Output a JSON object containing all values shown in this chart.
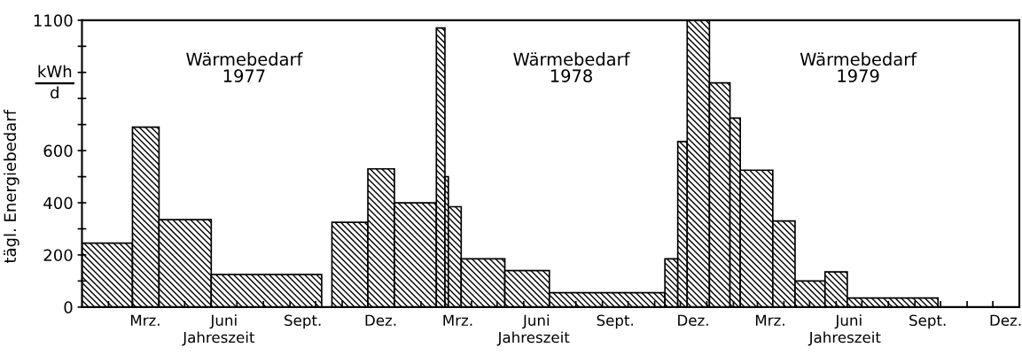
{
  "chart_data": {
    "type": "histogram",
    "ylabel": "tägl. Energiebedarf",
    "xlabel": "Jahreszeit",
    "annotations": [
      "kWh",
      "d",
      "Wärmebedarf\n1977",
      "Wärmebedarf\n1978",
      "Wärmebedarf\n1979",
      "Jahreszeit",
      "Jahreszeit"
    ],
    "color": "#000000",
    "bins": [
      "1977-01-01",
      "1977-03-01",
      "1977-04-01",
      "1977-06-01",
      "1977-10-08",
      "1977-10-20",
      "1977-12-01",
      "1978-01-01",
      "1978-02-19",
      "1978-03-01",
      "1978-03-05",
      "1978-03-20",
      "1978-05-10",
      "1978-07-01",
      "1978-11-13",
      "1978-11-28",
      "1978-12-09",
      "1979-01-04",
      "1979-01-28",
      "1979-02-09",
      "1979-03-19",
      "1979-04-14",
      "1979-05-19",
      "1979-06-14",
      "1979-09-28"
    ],
    "values": [
      245,
      690,
      335,
      125,
      null,
      325,
      530,
      400,
      1070,
      500,
      385,
      185,
      140,
      55,
      185,
      635,
      1100,
      860,
      725,
      525,
      330,
      100,
      135,
      35
    ],
    "xlim": [
      "1977-01-01",
      "1980-01-01"
    ],
    "ylim": [
      0,
      1100
    ],
    "xticks": [
      {
        "value": "1977-02-01",
        "label": null
      },
      {
        "value": "1977-03-01",
        "label": null
      },
      {
        "value": "1977-04-01",
        "label": null
      },
      {
        "value": "1977-05-01",
        "label": null
      },
      {
        "value": "1977-06-01",
        "label": null
      },
      {
        "value": "1977-07-01",
        "label": null
      },
      {
        "value": "1977-08-01",
        "label": null
      },
      {
        "value": "1977-09-01",
        "label": null
      },
      {
        "value": "1977-10-01",
        "label": null
      },
      {
        "value": "1977-11-01",
        "label": null
      },
      {
        "value": "1977-12-01",
        "label": null
      },
      {
        "value": "1978-01-01",
        "label": null
      },
      {
        "value": "1978-02-01",
        "label": null
      },
      {
        "value": "1978-03-01",
        "label": null
      },
      {
        "value": "1978-04-01",
        "label": null
      },
      {
        "value": "1978-05-01",
        "label": null
      },
      {
        "value": "1978-06-01",
        "label": null
      },
      {
        "value": "1978-07-01",
        "label": null
      },
      {
        "value": "1978-08-01",
        "label": null
      },
      {
        "value": "1978-09-01",
        "label": null
      },
      {
        "value": "1978-10-01",
        "label": null
      },
      {
        "value": "1978-11-01",
        "label": null
      },
      {
        "value": "1978-12-01",
        "label": null
      },
      {
        "value": "1979-01-01",
        "label": null
      },
      {
        "value": "1979-02-01",
        "label": null
      },
      {
        "value": "1979-03-01",
        "label": null
      },
      {
        "value": "1979-04-01",
        "label": null
      },
      {
        "value": "1979-05-01",
        "label": null
      },
      {
        "value": "1979-06-01",
        "label": null
      },
      {
        "value": "1979-07-01",
        "label": null
      },
      {
        "value": "1979-08-01",
        "label": null
      },
      {
        "value": "1979-09-01",
        "label": null
      },
      {
        "value": "1979-10-01",
        "label": null
      },
      {
        "value": "1979-11-01",
        "label": null
      },
      {
        "value": "1979-12-01",
        "label": null
      },
      {
        "value": "1977-03-16",
        "label": "Mrz."
      },
      {
        "value": "1977-06-16",
        "label": "Juni"
      },
      {
        "value": "1977-09-16",
        "label": "Sept."
      },
      {
        "value": "1977-12-16",
        "label": "Dez."
      },
      {
        "value": "1978-03-16",
        "label": "Mrz."
      },
      {
        "value": "1978-06-16",
        "label": "Juni"
      },
      {
        "value": "1978-09-16",
        "label": "Sept."
      },
      {
        "value": "1978-12-16",
        "label": "Dez."
      },
      {
        "value": "1979-03-16",
        "label": "Mrz."
      },
      {
        "value": "1979-06-16",
        "label": "Juni"
      },
      {
        "value": "1979-09-16",
        "label": "Sept."
      },
      {
        "value": "1979-12-16",
        "label": "Dez."
      }
    ],
    "yticks": [
      0,
      {
        "value": 100,
        "label": null
      },
      200,
      {
        "value": 300,
        "label": null
      },
      400,
      {
        "value": 500,
        "label": null
      },
      600,
      {
        "value": 700,
        "label": null
      },
      {
        "value": 800,
        "label": null
      },
      {
        "value": 900,
        "label": null
      },
      {
        "value": 1000,
        "label": null
      },
      1100
    ],
    "grid": false,
    "legend": false
  }
}
